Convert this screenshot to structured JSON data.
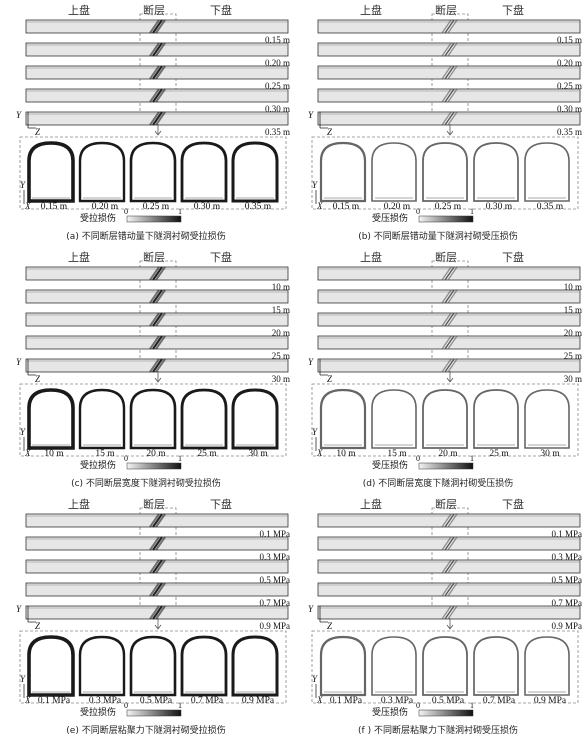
{
  "headers": {
    "hanging_wall": "上盘",
    "fault": "断层",
    "footwall": "下盘"
  },
  "axes": {
    "y": "Y",
    "z": "Z",
    "x": "X"
  },
  "legend": {
    "min": "0",
    "max": "1"
  },
  "panels": [
    {
      "id": "a",
      "caption": "(a) 不同断层错动量下隧洞衬砌受拉损伤",
      "legend_label": "受拉损伤",
      "damage": "tension",
      "values": [
        "0.15 m",
        "0.20 m",
        "0.25 m",
        "0.30 m",
        "0.35 m"
      ]
    },
    {
      "id": "b",
      "caption": "(b) 不同断层错动量下隧洞衬砌受压损伤",
      "legend_label": "受压损伤",
      "damage": "compression",
      "values": [
        "0.15 m",
        "0.20 m",
        "0.25 m",
        "0.30 m",
        "0.35 m"
      ]
    },
    {
      "id": "c",
      "caption": "(c) 不同断层宽度下隧洞衬砌受拉损伤",
      "legend_label": "受拉损伤",
      "damage": "tension",
      "values": [
        "10 m",
        "15 m",
        "20 m",
        "25 m",
        "30 m"
      ]
    },
    {
      "id": "d",
      "caption": "(d) 不同断层宽度下隧洞衬砌受压损伤",
      "legend_label": "受压损伤",
      "damage": "compression",
      "values": [
        "10 m",
        "15 m",
        "20 m",
        "25 m",
        "30 m"
      ]
    },
    {
      "id": "e",
      "caption": "(e) 不同断层粘聚力下隧洞衬砌受拉损伤",
      "legend_label": "受拉损伤",
      "damage": "tension",
      "values": [
        "0.1 MPa",
        "0.3 MPa",
        "0.5 MPa",
        "0.7 MPa",
        "0.9 MPa"
      ]
    },
    {
      "id": "f",
      "caption": "(f ) 不同断层粘聚力下隧洞衬砌受压损伤",
      "legend_label": "受压损伤",
      "damage": "compression",
      "values": [
        "0.1 MPa",
        "0.3 MPa",
        "0.5 MPa",
        "0.7 MPa",
        "0.9 MPa"
      ]
    }
  ]
}
